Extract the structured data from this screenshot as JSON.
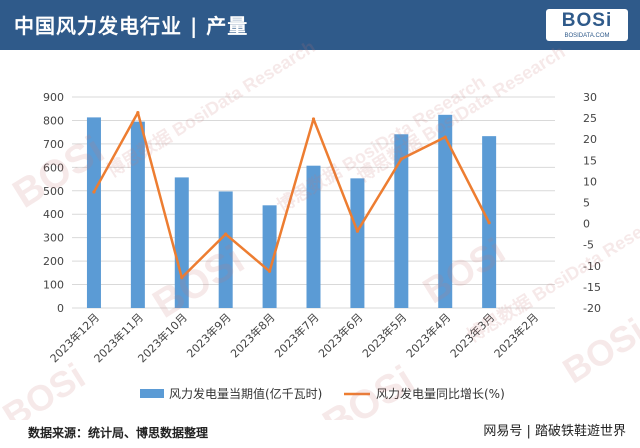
{
  "header": {
    "title": "中国风力发电行业 | 产量",
    "logo_main": "BOSi",
    "logo_sub": "BOSIDATA.COM"
  },
  "footer": {
    "source": "数据来源：统计局、博思数据整理",
    "credit": "网易号 | 踏破铁鞋遊世界"
  },
  "watermark": {
    "brand": "BOSi",
    "cn": "博思数据",
    "en": "BosiData Research"
  },
  "colors": {
    "header_bg": "#2f5a8a",
    "bar": "#5b9bd5",
    "line": "#ed7d31",
    "grid": "#d9d9d9"
  },
  "chart_data": {
    "type": "bar",
    "categories": [
      "2023年12月",
      "2023年11月",
      "2023年10月",
      "2023年9月",
      "2023年8月",
      "2023年7月",
      "2023年6月",
      "2023年5月",
      "2023年4月",
      "2023年3月",
      "2023年2月"
    ],
    "series": [
      {
        "name": "风力发电量当期值(亿千瓦时)",
        "type": "bar",
        "axis": "left",
        "values": [
          813,
          795,
          557,
          497,
          438,
          607,
          553,
          741,
          824,
          733,
          null
        ]
      },
      {
        "name": "风力发电量同比增长(%)",
        "type": "line",
        "axis": "right",
        "values": [
          7.5,
          26.3,
          -12.8,
          -2.5,
          -11.3,
          24.8,
          -1.8,
          15.3,
          20.5,
          0.2,
          null
        ]
      }
    ],
    "y_left": {
      "ylim": [
        0,
        900
      ],
      "ticks": [
        0,
        100,
        200,
        300,
        400,
        500,
        600,
        700,
        800,
        900
      ]
    },
    "y_right": {
      "ylim": [
        -20,
        30
      ],
      "ticks": [
        -20,
        -15,
        -10,
        -5,
        0,
        5,
        10,
        15,
        20,
        25,
        30
      ]
    },
    "grid": true,
    "legend_position": "bottom"
  }
}
